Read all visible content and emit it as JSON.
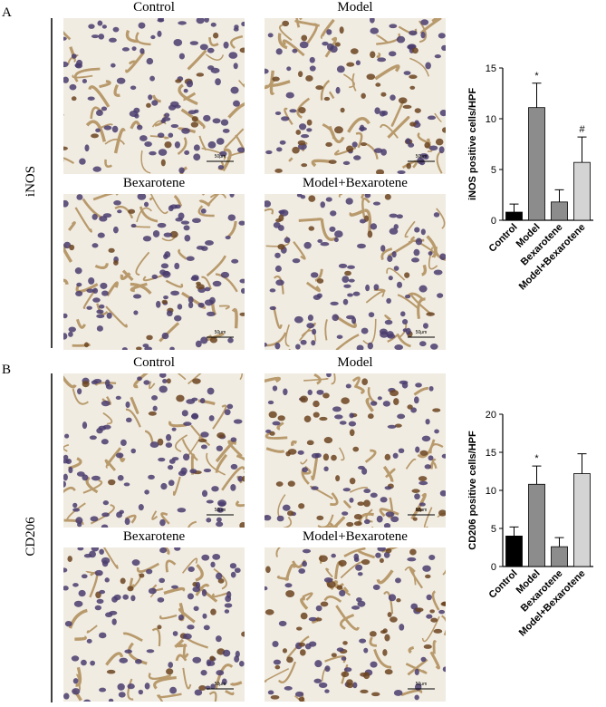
{
  "panels": [
    {
      "label": "A",
      "marker": "iNOS",
      "images": [
        "Control",
        "Model",
        "Bexarotene",
        "Model+Bexarotene"
      ],
      "scale_bar": "50μm"
    },
    {
      "label": "B",
      "marker": "CD206",
      "images": [
        "Control",
        "Model",
        "Bexarotene",
        "Model+Bexarotene"
      ],
      "scale_bar": "50μm"
    }
  ],
  "chart_data": [
    {
      "type": "bar",
      "y_label": "iNOS positive cells/HPF",
      "categories": [
        "Control",
        "Model",
        "Bexarotene",
        "Model+Bexarotene"
      ],
      "values": [
        0.8,
        11.1,
        1.8,
        5.7
      ],
      "errors": [
        0.8,
        2.4,
        1.2,
        2.5
      ],
      "annotations": [
        null,
        "*",
        null,
        "#"
      ],
      "colors": [
        "#000000",
        "#8c8c8c",
        "#8c8c8c",
        "#d4d4d4"
      ],
      "ylim": [
        0,
        15
      ],
      "yticks": [
        0,
        5,
        10,
        15
      ]
    },
    {
      "type": "bar",
      "y_label": "CD206 positive cells/HPF",
      "categories": [
        "Control",
        "Model",
        "Bexarotene",
        "Model+Bexarotene"
      ],
      "values": [
        4.0,
        10.8,
        2.6,
        12.2
      ],
      "errors": [
        1.2,
        2.4,
        1.2,
        2.6
      ],
      "annotations": [
        null,
        "*",
        null,
        null
      ],
      "colors": [
        "#000000",
        "#8c8c8c",
        "#8c8c8c",
        "#d4d4d4"
      ],
      "ylim": [
        0,
        20
      ],
      "yticks": [
        0,
        5,
        10,
        15,
        20
      ]
    }
  ]
}
